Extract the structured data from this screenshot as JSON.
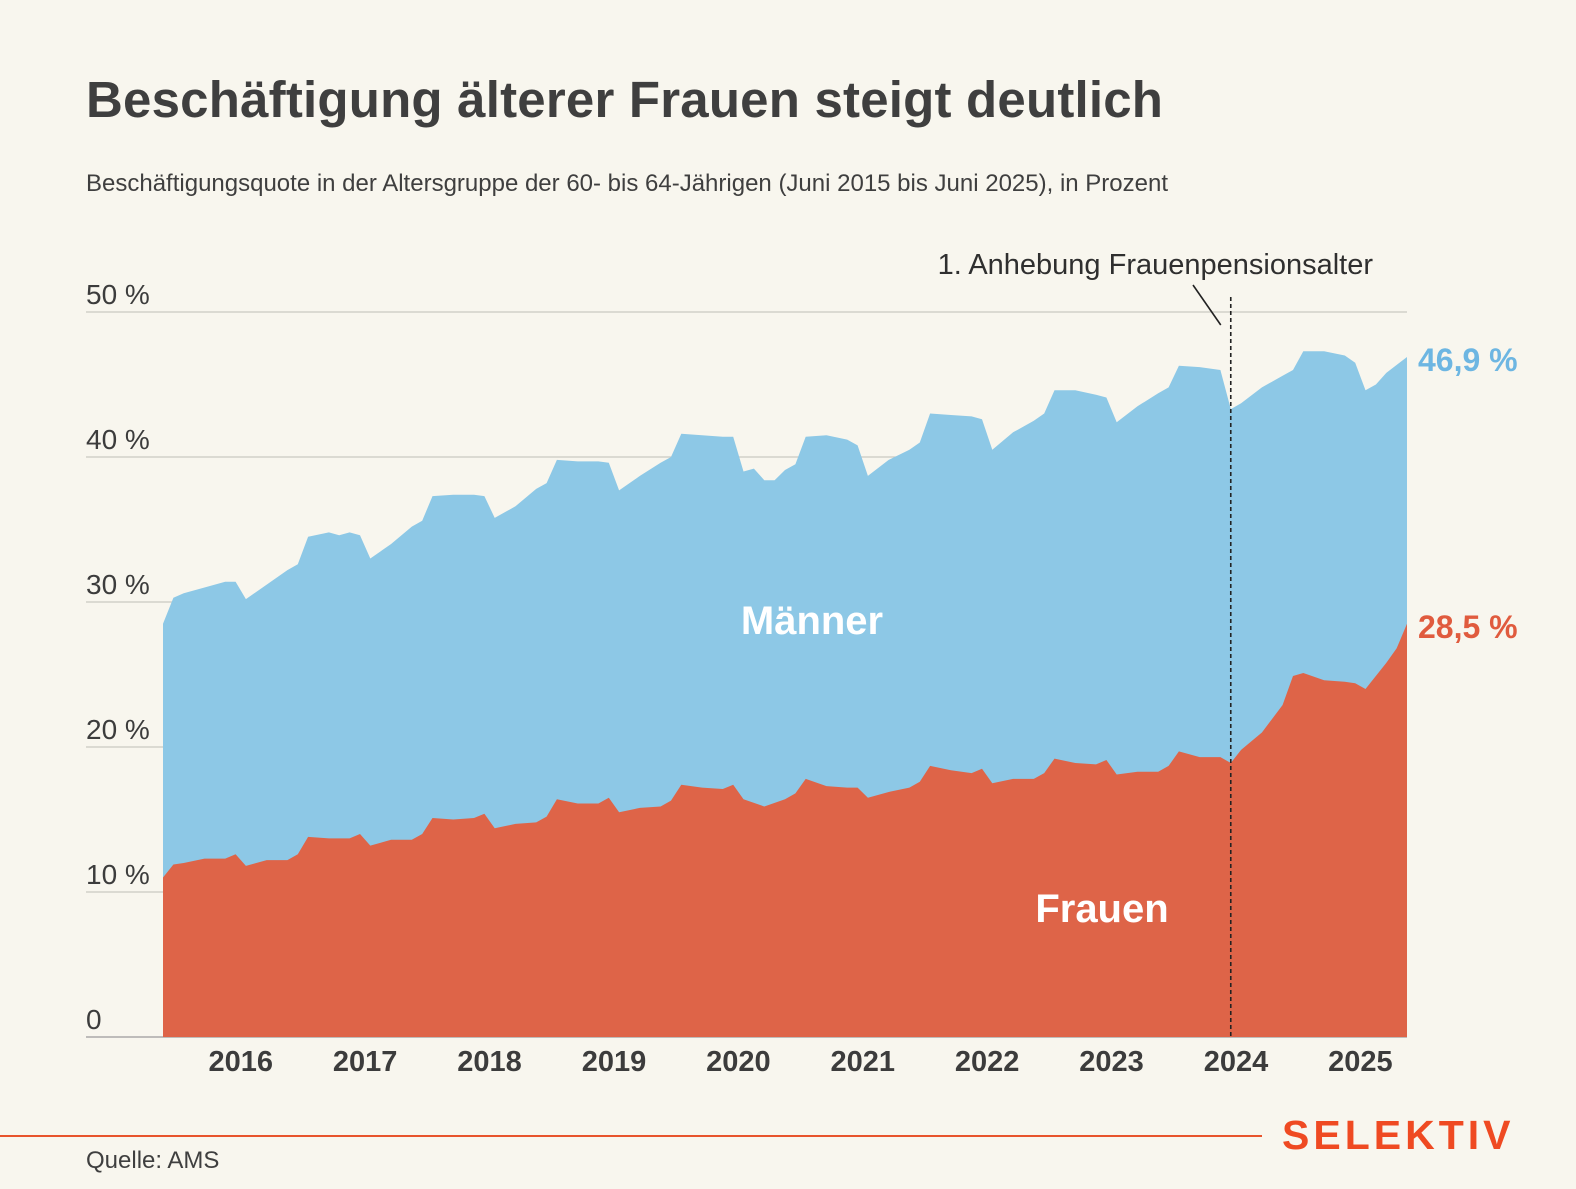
{
  "header": {
    "title": "Beschäftigung älterer Frauen steigt deutlich",
    "subtitle": "Beschäftigungsquote in der Altersgruppe der 60- bis 64-Jährigen (Juni 2015 bis Juni 2025), in Prozent"
  },
  "footer": {
    "source": "Quelle: AMS",
    "logo": "SELEKTIV"
  },
  "colors": {
    "maenner": "#8dc8e6",
    "frauen": "#de6448",
    "maenner_label": "#6db6e2",
    "frauen_label": "#e05b3e",
    "accent": "#ef4a22"
  },
  "chart_data": {
    "type": "area",
    "x_start": "2015-06",
    "x_end": "2025-06",
    "ylim": [
      0,
      50
    ],
    "yticks": [
      {
        "value": 0,
        "label": "0"
      },
      {
        "value": 10,
        "label": "10 %"
      },
      {
        "value": 20,
        "label": "20 %"
      },
      {
        "value": 30,
        "label": "30 %"
      },
      {
        "value": 40,
        "label": "40 %"
      },
      {
        "value": 50,
        "label": "50 %"
      }
    ],
    "xtick_labels": [
      "2016",
      "2017",
      "2018",
      "2019",
      "2020",
      "2021",
      "2022",
      "2023",
      "2024",
      "2025"
    ],
    "grid": true,
    "annotation": {
      "text": "1. Anhebung Frauenpensionsalter",
      "x": "2024-01"
    },
    "series": [
      {
        "name": "Männer",
        "end_label": "46,9 %",
        "points": [
          [
            "2015-06",
            28.5
          ],
          [
            "2015-07",
            30.3
          ],
          [
            "2015-08",
            30.6
          ],
          [
            "2015-10",
            31.0
          ],
          [
            "2015-12",
            31.4
          ],
          [
            "2016-01",
            31.4
          ],
          [
            "2016-02",
            30.2
          ],
          [
            "2016-04",
            31.2
          ],
          [
            "2016-06",
            32.2
          ],
          [
            "2016-07",
            32.6
          ],
          [
            "2016-08",
            34.5
          ],
          [
            "2016-10",
            34.8
          ],
          [
            "2016-11",
            34.6
          ],
          [
            "2016-12",
            34.8
          ],
          [
            "2017-01",
            34.6
          ],
          [
            "2017-02",
            33.0
          ],
          [
            "2017-04",
            34.0
          ],
          [
            "2017-06",
            35.2
          ],
          [
            "2017-07",
            35.6
          ],
          [
            "2017-08",
            37.3
          ],
          [
            "2017-10",
            37.4
          ],
          [
            "2017-12",
            37.4
          ],
          [
            "2018-01",
            37.3
          ],
          [
            "2018-02",
            35.8
          ],
          [
            "2018-04",
            36.6
          ],
          [
            "2018-06",
            37.8
          ],
          [
            "2018-07",
            38.2
          ],
          [
            "2018-08",
            39.8
          ],
          [
            "2018-10",
            39.7
          ],
          [
            "2018-12",
            39.7
          ],
          [
            "2019-01",
            39.6
          ],
          [
            "2019-02",
            37.7
          ],
          [
            "2019-04",
            38.7
          ],
          [
            "2019-06",
            39.6
          ],
          [
            "2019-07",
            40.0
          ],
          [
            "2019-08",
            41.6
          ],
          [
            "2019-10",
            41.5
          ],
          [
            "2019-12",
            41.4
          ],
          [
            "2020-01",
            41.4
          ],
          [
            "2020-02",
            39.0
          ],
          [
            "2020-03",
            39.2
          ],
          [
            "2020-04",
            38.4
          ],
          [
            "2020-05",
            38.4
          ],
          [
            "2020-06",
            39.1
          ],
          [
            "2020-07",
            39.5
          ],
          [
            "2020-08",
            41.4
          ],
          [
            "2020-10",
            41.5
          ],
          [
            "2020-12",
            41.2
          ],
          [
            "2021-01",
            40.8
          ],
          [
            "2021-02",
            38.7
          ],
          [
            "2021-04",
            39.8
          ],
          [
            "2021-06",
            40.5
          ],
          [
            "2021-07",
            41.0
          ],
          [
            "2021-08",
            43.0
          ],
          [
            "2021-10",
            42.9
          ],
          [
            "2021-12",
            42.8
          ],
          [
            "2022-01",
            42.6
          ],
          [
            "2022-02",
            40.5
          ],
          [
            "2022-04",
            41.7
          ],
          [
            "2022-06",
            42.5
          ],
          [
            "2022-07",
            43.0
          ],
          [
            "2022-08",
            44.6
          ],
          [
            "2022-10",
            44.6
          ],
          [
            "2022-12",
            44.3
          ],
          [
            "2023-01",
            44.1
          ],
          [
            "2023-02",
            42.4
          ],
          [
            "2023-04",
            43.5
          ],
          [
            "2023-06",
            44.4
          ],
          [
            "2023-07",
            44.8
          ],
          [
            "2023-08",
            46.3
          ],
          [
            "2023-10",
            46.2
          ],
          [
            "2023-12",
            46.0
          ],
          [
            "2024-01",
            43.3
          ],
          [
            "2024-02",
            43.7
          ],
          [
            "2024-04",
            44.8
          ],
          [
            "2024-06",
            45.6
          ],
          [
            "2024-07",
            46.0
          ],
          [
            "2024-08",
            47.3
          ],
          [
            "2024-10",
            47.3
          ],
          [
            "2024-12",
            47.0
          ],
          [
            "2025-01",
            46.5
          ],
          [
            "2025-02",
            44.6
          ],
          [
            "2025-03",
            45.0
          ],
          [
            "2025-04",
            45.8
          ],
          [
            "2025-06",
            46.9
          ]
        ]
      },
      {
        "name": "Frauen",
        "end_label": "28,5 %",
        "points": [
          [
            "2015-06",
            11.0
          ],
          [
            "2015-07",
            11.9
          ],
          [
            "2015-08",
            12.0
          ],
          [
            "2015-10",
            12.3
          ],
          [
            "2015-12",
            12.3
          ],
          [
            "2016-01",
            12.6
          ],
          [
            "2016-02",
            11.8
          ],
          [
            "2016-04",
            12.2
          ],
          [
            "2016-06",
            12.2
          ],
          [
            "2016-07",
            12.6
          ],
          [
            "2016-08",
            13.8
          ],
          [
            "2016-10",
            13.7
          ],
          [
            "2016-12",
            13.7
          ],
          [
            "2017-01",
            14.0
          ],
          [
            "2017-02",
            13.2
          ],
          [
            "2017-04",
            13.6
          ],
          [
            "2017-06",
            13.6
          ],
          [
            "2017-07",
            14.0
          ],
          [
            "2017-08",
            15.1
          ],
          [
            "2017-10",
            15.0
          ],
          [
            "2017-12",
            15.1
          ],
          [
            "2018-01",
            15.4
          ],
          [
            "2018-02",
            14.4
          ],
          [
            "2018-04",
            14.7
          ],
          [
            "2018-06",
            14.8
          ],
          [
            "2018-07",
            15.2
          ],
          [
            "2018-08",
            16.4
          ],
          [
            "2018-10",
            16.1
          ],
          [
            "2018-12",
            16.1
          ],
          [
            "2019-01",
            16.5
          ],
          [
            "2019-02",
            15.5
          ],
          [
            "2019-04",
            15.8
          ],
          [
            "2019-06",
            15.9
          ],
          [
            "2019-07",
            16.3
          ],
          [
            "2019-08",
            17.4
          ],
          [
            "2019-10",
            17.2
          ],
          [
            "2019-12",
            17.1
          ],
          [
            "2020-01",
            17.4
          ],
          [
            "2020-02",
            16.4
          ],
          [
            "2020-04",
            15.9
          ],
          [
            "2020-06",
            16.4
          ],
          [
            "2020-07",
            16.8
          ],
          [
            "2020-08",
            17.8
          ],
          [
            "2020-10",
            17.3
          ],
          [
            "2020-12",
            17.2
          ],
          [
            "2021-01",
            17.2
          ],
          [
            "2021-02",
            16.5
          ],
          [
            "2021-04",
            16.9
          ],
          [
            "2021-06",
            17.2
          ],
          [
            "2021-07",
            17.6
          ],
          [
            "2021-08",
            18.7
          ],
          [
            "2021-10",
            18.4
          ],
          [
            "2021-12",
            18.2
          ],
          [
            "2022-01",
            18.5
          ],
          [
            "2022-02",
            17.5
          ],
          [
            "2022-04",
            17.8
          ],
          [
            "2022-06",
            17.8
          ],
          [
            "2022-07",
            18.2
          ],
          [
            "2022-08",
            19.2
          ],
          [
            "2022-10",
            18.9
          ],
          [
            "2022-12",
            18.8
          ],
          [
            "2023-01",
            19.1
          ],
          [
            "2023-02",
            18.1
          ],
          [
            "2023-04",
            18.3
          ],
          [
            "2023-06",
            18.3
          ],
          [
            "2023-07",
            18.7
          ],
          [
            "2023-08",
            19.7
          ],
          [
            "2023-10",
            19.3
          ],
          [
            "2023-12",
            19.3
          ],
          [
            "2024-01",
            18.9
          ],
          [
            "2024-02",
            19.8
          ],
          [
            "2024-04",
            21.0
          ],
          [
            "2024-06",
            22.9
          ],
          [
            "2024-07",
            24.9
          ],
          [
            "2024-08",
            25.1
          ],
          [
            "2024-10",
            24.6
          ],
          [
            "2024-12",
            24.5
          ],
          [
            "2025-01",
            24.4
          ],
          [
            "2025-02",
            24.0
          ],
          [
            "2025-04",
            25.8
          ],
          [
            "2025-05",
            26.8
          ],
          [
            "2025-06",
            28.5
          ]
        ]
      }
    ]
  }
}
